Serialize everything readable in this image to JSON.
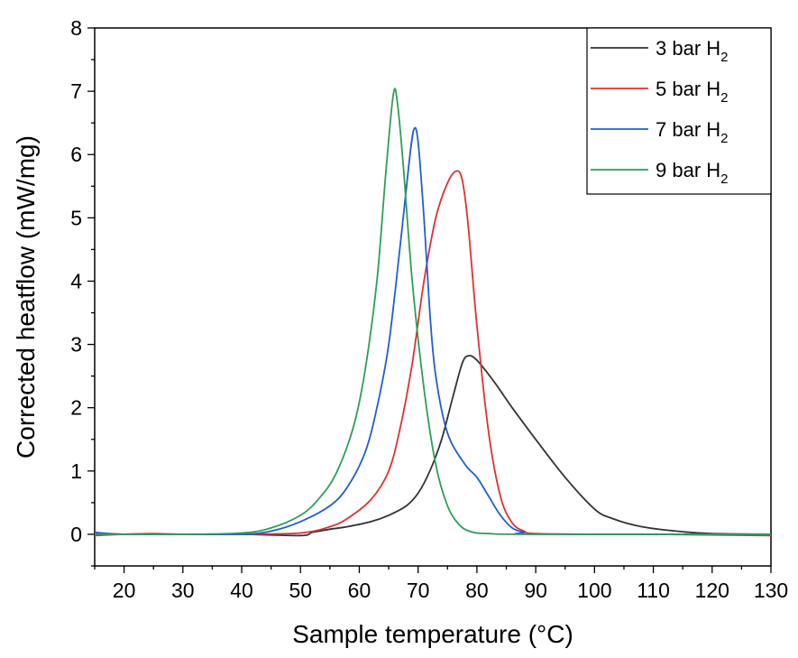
{
  "chart_data": {
    "type": "line",
    "title": "",
    "xlabel": "Sample temperature (°C)",
    "ylabel": "Corrected heatflow (mW/mg)",
    "xlim": [
      15,
      130
    ],
    "ylim": [
      -0.5,
      8
    ],
    "x_ticks": [
      20,
      30,
      40,
      50,
      60,
      70,
      80,
      90,
      100,
      110,
      120,
      130
    ],
    "y_ticks": [
      0,
      1,
      2,
      3,
      4,
      5,
      6,
      7,
      8
    ],
    "grid": false,
    "legend_position": "top-right",
    "legend_subscript": "2",
    "series": [
      {
        "name": "3 bar H",
        "color": "#333333",
        "points": [
          [
            15,
            0.02
          ],
          [
            20,
            0.0
          ],
          [
            30,
            0.0
          ],
          [
            40,
            0.0
          ],
          [
            50,
            -0.02
          ],
          [
            52,
            0.03
          ],
          [
            55,
            0.08
          ],
          [
            58,
            0.12
          ],
          [
            62,
            0.2
          ],
          [
            65,
            0.3
          ],
          [
            68,
            0.45
          ],
          [
            70,
            0.65
          ],
          [
            72,
            1.0
          ],
          [
            74,
            1.5
          ],
          [
            76,
            2.2
          ],
          [
            77.5,
            2.7
          ],
          [
            78.5,
            2.82
          ],
          [
            80,
            2.75
          ],
          [
            83,
            2.4
          ],
          [
            86,
            2.0
          ],
          [
            90,
            1.5
          ],
          [
            95,
            0.9
          ],
          [
            100,
            0.4
          ],
          [
            103,
            0.25
          ],
          [
            108,
            0.12
          ],
          [
            115,
            0.04
          ],
          [
            120,
            0.01
          ],
          [
            130,
            0.0
          ]
        ]
      },
      {
        "name": "5 bar H",
        "color": "#e03030",
        "points": [
          [
            15,
            -0.02
          ],
          [
            20,
            0.0
          ],
          [
            25,
            0.01
          ],
          [
            30,
            0.0
          ],
          [
            40,
            0.0
          ],
          [
            50,
            0.02
          ],
          [
            55,
            0.12
          ],
          [
            58,
            0.25
          ],
          [
            62,
            0.55
          ],
          [
            65,
            1.0
          ],
          [
            67,
            1.7
          ],
          [
            69,
            2.7
          ],
          [
            71,
            4.0
          ],
          [
            73,
            5.0
          ],
          [
            75,
            5.55
          ],
          [
            76.5,
            5.74
          ],
          [
            77.5,
            5.6
          ],
          [
            78.5,
            4.9
          ],
          [
            80,
            3.3
          ],
          [
            82,
            1.6
          ],
          [
            84,
            0.6
          ],
          [
            86,
            0.18
          ],
          [
            88,
            0.05
          ],
          [
            90,
            0.01
          ],
          [
            100,
            0.0
          ],
          [
            110,
            0.0
          ],
          [
            130,
            -0.02
          ]
        ]
      },
      {
        "name": "7 bar H",
        "color": "#1f5fcf",
        "points": [
          [
            15,
            0.03
          ],
          [
            20,
            0.0
          ],
          [
            30,
            0.0
          ],
          [
            40,
            0.0
          ],
          [
            45,
            0.05
          ],
          [
            50,
            0.2
          ],
          [
            55,
            0.45
          ],
          [
            58,
            0.75
          ],
          [
            61,
            1.3
          ],
          [
            63,
            2.0
          ],
          [
            65,
            3.0
          ],
          [
            67,
            4.6
          ],
          [
            68.5,
            5.9
          ],
          [
            69.3,
            6.4
          ],
          [
            70,
            6.2
          ],
          [
            71,
            5.0
          ],
          [
            72,
            3.5
          ],
          [
            73,
            2.5
          ],
          [
            75,
            1.6
          ],
          [
            78,
            1.1
          ],
          [
            80,
            0.9
          ],
          [
            82,
            0.6
          ],
          [
            84,
            0.3
          ],
          [
            86,
            0.1
          ],
          [
            88,
            0.03
          ],
          [
            90,
            0.0
          ],
          [
            130,
            0.0
          ]
        ]
      },
      {
        "name": "9 bar H",
        "color": "#2e9e5a",
        "points": [
          [
            15,
            0.0
          ],
          [
            20,
            0.0
          ],
          [
            30,
            0.0
          ],
          [
            40,
            0.02
          ],
          [
            45,
            0.1
          ],
          [
            50,
            0.3
          ],
          [
            53,
            0.55
          ],
          [
            56,
            0.95
          ],
          [
            59,
            1.7
          ],
          [
            61,
            2.6
          ],
          [
            63,
            4.0
          ],
          [
            64.5,
            5.7
          ],
          [
            65.8,
            6.96
          ],
          [
            66.5,
            6.8
          ],
          [
            67.5,
            5.8
          ],
          [
            69,
            4.0
          ],
          [
            71,
            2.3
          ],
          [
            73,
            1.1
          ],
          [
            75,
            0.45
          ],
          [
            77,
            0.15
          ],
          [
            79,
            0.04
          ],
          [
            82,
            0.01
          ],
          [
            90,
            0.0
          ],
          [
            130,
            0.0
          ]
        ]
      }
    ]
  }
}
